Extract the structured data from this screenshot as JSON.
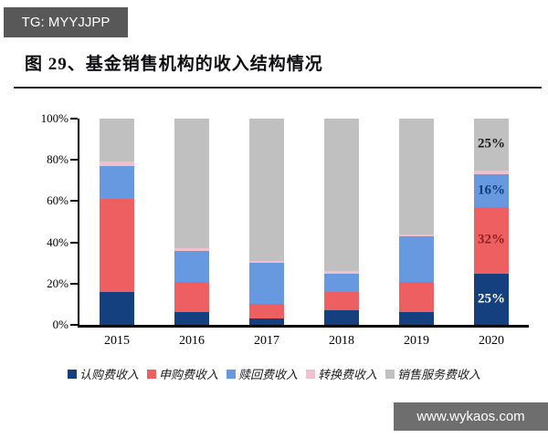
{
  "badge": {
    "text": "TG: MYYJJPP"
  },
  "title": {
    "text": "图 29、基金销售机构的收入结构情况"
  },
  "watermark": {
    "text": "www.wykaos.com"
  },
  "chart_data": {
    "type": "bar",
    "subtype": "stacked-percent",
    "title": "基金销售机构的收入结构情况",
    "categories": [
      "2015",
      "2016",
      "2017",
      "2018",
      "2019",
      "2020"
    ],
    "series": [
      {
        "name": "认购费收入",
        "color": "#15407f",
        "values": [
          16,
          6,
          3,
          7,
          6,
          25
        ]
      },
      {
        "name": "申购费收入",
        "color": "#ee5f62",
        "values": [
          45,
          15,
          7,
          9,
          15,
          32
        ]
      },
      {
        "name": "赎回费收入",
        "color": "#6699e0",
        "values": [
          16,
          15,
          20,
          9,
          22,
          16
        ]
      },
      {
        "name": "转换费收入",
        "color": "#f2bfcd",
        "values": [
          2,
          1,
          1,
          1,
          1,
          2
        ]
      },
      {
        "name": "销售服务费收入",
        "color": "#c1c0c0",
        "values": [
          21,
          63,
          69,
          74,
          56,
          25
        ]
      }
    ],
    "bar_labels": [
      {
        "category": "2020",
        "series": "认购费收入",
        "text": "25%",
        "color": "#ffffff"
      },
      {
        "category": "2020",
        "series": "申购费收入",
        "text": "32%",
        "color": "#8b2020"
      },
      {
        "category": "2020",
        "series": "赎回费收入",
        "text": "16%",
        "color": "#123c78"
      },
      {
        "category": "2020",
        "series": "销售服务费收入",
        "text": "25%",
        "color": "#1a1a1a"
      }
    ],
    "ytick_labels": [
      "0%",
      "20%",
      "40%",
      "60%",
      "80%",
      "100%"
    ],
    "ylim": [
      0,
      100
    ],
    "grid": false,
    "legend_position": "bottom"
  }
}
